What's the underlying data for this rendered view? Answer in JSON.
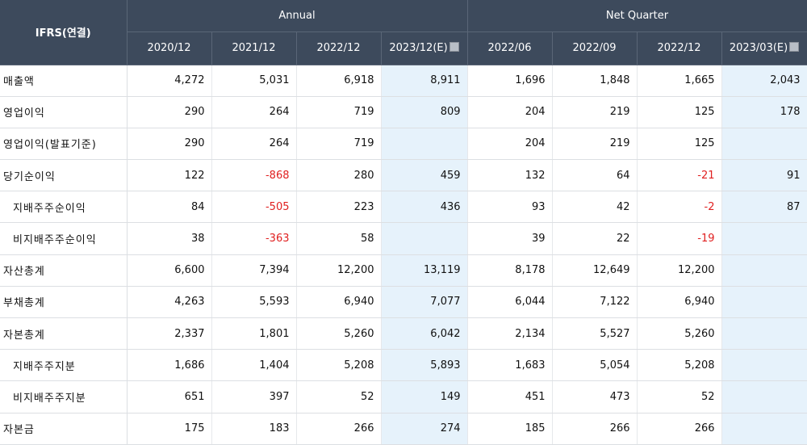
{
  "header": {
    "corner": "IFRS(연결)",
    "groups": [
      {
        "label": "Annual",
        "span": 4
      },
      {
        "label": "Net Quarter",
        "span": 4
      }
    ],
    "columns": [
      {
        "label": "2020/12",
        "estimate": false
      },
      {
        "label": "2021/12",
        "estimate": false
      },
      {
        "label": "2022/12",
        "estimate": false
      },
      {
        "label": "2023/12(E)",
        "estimate": true
      },
      {
        "label": "2022/06",
        "estimate": false
      },
      {
        "label": "2022/09",
        "estimate": false
      },
      {
        "label": "2022/12",
        "estimate": false
      },
      {
        "label": "2023/03(E)",
        "estimate": true
      }
    ]
  },
  "colors": {
    "negative": "#e02020",
    "estimate_bg": "#e6f2fb",
    "header_bg": "#3d4a5c"
  },
  "rows": [
    {
      "label": "매출액",
      "indent": false,
      "values": [
        "4,272",
        "5,031",
        "6,918",
        "8,911",
        "1,696",
        "1,848",
        "1,665",
        "2,043"
      ]
    },
    {
      "label": "영업이익",
      "indent": false,
      "values": [
        "290",
        "264",
        "719",
        "809",
        "204",
        "219",
        "125",
        "178"
      ]
    },
    {
      "label": "영업이익(발표기준)",
      "indent": false,
      "values": [
        "290",
        "264",
        "719",
        "",
        "204",
        "219",
        "125",
        ""
      ]
    },
    {
      "label": "당기순이익",
      "indent": false,
      "values": [
        "122",
        "-868",
        "280",
        "459",
        "132",
        "64",
        "-21",
        "91"
      ]
    },
    {
      "label": "지배주주순이익",
      "indent": true,
      "values": [
        "84",
        "-505",
        "223",
        "436",
        "93",
        "42",
        "-2",
        "87"
      ]
    },
    {
      "label": "비지배주주순이익",
      "indent": true,
      "values": [
        "38",
        "-363",
        "58",
        "",
        "39",
        "22",
        "-19",
        ""
      ]
    },
    {
      "label": "자산총계",
      "indent": false,
      "values": [
        "6,600",
        "7,394",
        "12,200",
        "13,119",
        "8,178",
        "12,649",
        "12,200",
        ""
      ]
    },
    {
      "label": "부채총계",
      "indent": false,
      "values": [
        "4,263",
        "5,593",
        "6,940",
        "7,077",
        "6,044",
        "7,122",
        "6,940",
        ""
      ]
    },
    {
      "label": "자본총계",
      "indent": false,
      "values": [
        "2,337",
        "1,801",
        "5,260",
        "6,042",
        "2,134",
        "5,527",
        "5,260",
        ""
      ]
    },
    {
      "label": "지배주주지분",
      "indent": true,
      "values": [
        "1,686",
        "1,404",
        "5,208",
        "5,893",
        "1,683",
        "5,054",
        "5,208",
        ""
      ]
    },
    {
      "label": "비지배주주지분",
      "indent": true,
      "values": [
        "651",
        "397",
        "52",
        "149",
        "451",
        "473",
        "52",
        ""
      ]
    },
    {
      "label": "자본금",
      "indent": false,
      "values": [
        "175",
        "183",
        "266",
        "274",
        "185",
        "266",
        "266",
        ""
      ]
    }
  ]
}
